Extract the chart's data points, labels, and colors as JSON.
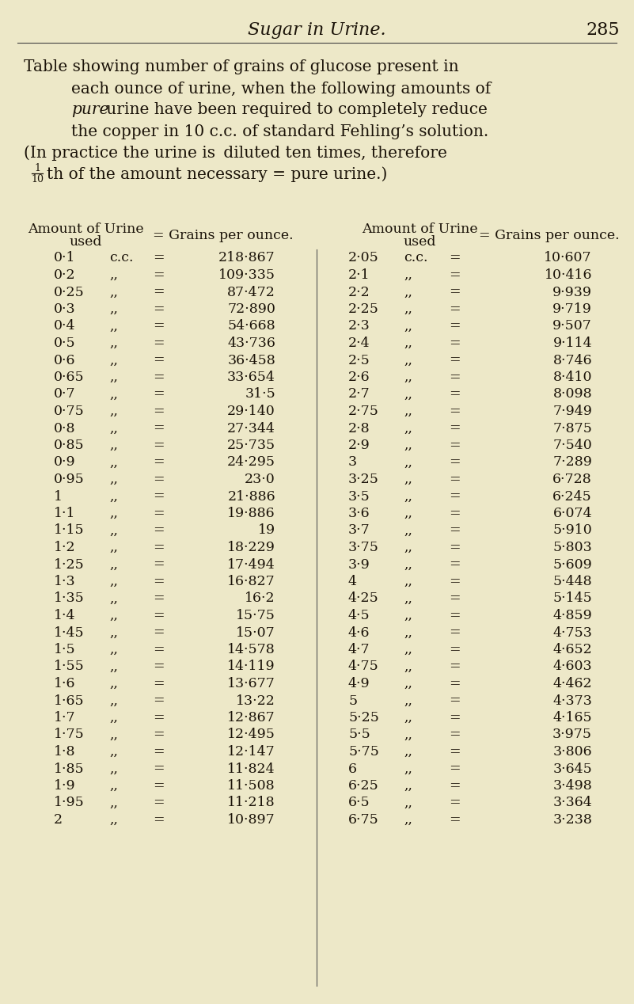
{
  "bg_color": "#ede8c8",
  "page_title": "Sugar in Urine.",
  "page_number": "285",
  "left_data": [
    [
      "0·1",
      "c.c.",
      "218·867"
    ],
    [
      "0·2",
      ",,",
      "109·335"
    ],
    [
      "0·25",
      ",,",
      "87·472"
    ],
    [
      "0·3",
      ",,",
      "72·890"
    ],
    [
      "0·4",
      ",,",
      "54·668"
    ],
    [
      "0·5",
      ",,",
      "43·736"
    ],
    [
      "0·6",
      ",,",
      "36·458"
    ],
    [
      "0·65",
      ",,",
      "33·654"
    ],
    [
      "0·7",
      ",,",
      "31·5"
    ],
    [
      "0·75",
      ",,",
      "29·140"
    ],
    [
      "0·8",
      ",,",
      "27·344"
    ],
    [
      "0·85",
      ",,",
      "25·735"
    ],
    [
      "0·9",
      ",,",
      "24·295"
    ],
    [
      "0·95",
      ",,",
      "23·0"
    ],
    [
      "1",
      ",,",
      "21·886"
    ],
    [
      "1·1",
      ",,",
      "19·886"
    ],
    [
      "1·15",
      ",,",
      "19"
    ],
    [
      "1·2",
      ",,",
      "18·229"
    ],
    [
      "1·25",
      ",,",
      "17·494"
    ],
    [
      "1·3",
      ",,",
      "16·827"
    ],
    [
      "1·35",
      ",,",
      "16·2"
    ],
    [
      "1·4",
      ",,",
      "15·75"
    ],
    [
      "1·45",
      ",,",
      "15·07"
    ],
    [
      "1·5",
      ",,",
      "14·578"
    ],
    [
      "1·55",
      ",,",
      "14·119"
    ],
    [
      "1·6",
      ",,",
      "13·677"
    ],
    [
      "1·65",
      ",,",
      "13·22"
    ],
    [
      "1·7",
      ",,",
      "12·867"
    ],
    [
      "1·75",
      ",,",
      "12·495"
    ],
    [
      "1·8",
      ",,",
      "12·147"
    ],
    [
      "1·85",
      ",,",
      "11·824"
    ],
    [
      "1·9",
      ",,",
      "11·508"
    ],
    [
      "1·95",
      ",,",
      "11·218"
    ],
    [
      "2",
      ",,",
      "10·897"
    ]
  ],
  "right_data": [
    [
      "2·05",
      "c.c.",
      "10·607"
    ],
    [
      "2·1",
      ",,",
      "10·416"
    ],
    [
      "2·2",
      ",,",
      "9·939"
    ],
    [
      "2·25",
      ",,",
      "9·719"
    ],
    [
      "2·3",
      ",,",
      "9·507"
    ],
    [
      "2·4",
      ",,",
      "9·114"
    ],
    [
      "2·5",
      ",,",
      "8·746"
    ],
    [
      "2·6",
      ",,",
      "8·410"
    ],
    [
      "2·7",
      ",,",
      "8·098"
    ],
    [
      "2·75",
      ",,",
      "7·949"
    ],
    [
      "2·8",
      ",,",
      "7·875"
    ],
    [
      "2·9",
      ",,",
      "7·540"
    ],
    [
      "3",
      ",,",
      "7·289"
    ],
    [
      "3·25",
      ",,",
      "6·728"
    ],
    [
      "3·5",
      ",,",
      "6·245"
    ],
    [
      "3·6",
      ",,",
      "6·074"
    ],
    [
      "3·7",
      ",,",
      "5·910"
    ],
    [
      "3·75",
      ",,",
      "5·803"
    ],
    [
      "3·9",
      ",,",
      "5·609"
    ],
    [
      "4",
      ",,",
      "5·448"
    ],
    [
      "4·25",
      ",,",
      "5·145"
    ],
    [
      "4·5",
      ",,",
      "4·859"
    ],
    [
      "4·6",
      ",,",
      "4·753"
    ],
    [
      "4·7",
      ",,",
      "4·652"
    ],
    [
      "4·75",
      ",,",
      "4·603"
    ],
    [
      "4·9",
      ",,",
      "4·462"
    ],
    [
      "5",
      ",,",
      "4·373"
    ],
    [
      "5·25",
      ",,",
      "4·165"
    ],
    [
      "5·5",
      ",,",
      "3·975"
    ],
    [
      "5·75",
      ",,",
      "3·806"
    ],
    [
      "6",
      ",,",
      "3·645"
    ],
    [
      "6·25",
      ",,",
      "3·498"
    ],
    [
      "6·5",
      ",,",
      "3·364"
    ],
    [
      "6·75",
      ",,",
      "3·238"
    ]
  ]
}
